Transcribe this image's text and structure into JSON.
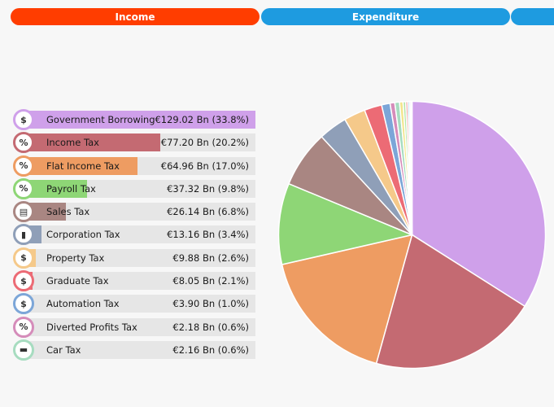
{
  "tabs": [
    {
      "label": "Income",
      "color": "#ff3d00"
    },
    {
      "label": "Expenditure",
      "color": "#1e9be0"
    },
    {
      "label": "",
      "color": "#1e9be0"
    }
  ],
  "income_items": [
    {
      "label": "Government Borrowing",
      "amount": "€129.02 Bn (33.8%)",
      "share": 33.8,
      "color": "#cfa0ea",
      "icon": "dollar-icon",
      "glyph": "$"
    },
    {
      "label": "Income Tax",
      "amount": "€77.20 Bn (20.2%)",
      "share": 20.2,
      "color": "#c46a72",
      "icon": "percent-icon",
      "glyph": "%"
    },
    {
      "label": "Flat Income Tax",
      "amount": "€64.96 Bn (17.0%)",
      "share": 17.0,
      "color": "#ee9c62",
      "icon": "flat-tax-icon",
      "glyph": "%"
    },
    {
      "label": "Payroll Tax",
      "amount": "€37.32 Bn (9.8%)",
      "share": 9.8,
      "color": "#8ed676",
      "icon": "payroll-icon",
      "glyph": "%"
    },
    {
      "label": "Sales Tax",
      "amount": "€26.14 Bn (6.8%)",
      "share": 6.8,
      "color": "#a98682",
      "icon": "sales-icon",
      "glyph": "▤"
    },
    {
      "label": "Corporation Tax",
      "amount": "€13.16 Bn (3.4%)",
      "share": 3.4,
      "color": "#8f9fb8",
      "icon": "corporation-icon",
      "glyph": "▮"
    },
    {
      "label": "Property Tax",
      "amount": "€9.88 Bn (2.6%)",
      "share": 2.6,
      "color": "#f5c98a",
      "icon": "property-icon",
      "glyph": "$"
    },
    {
      "label": "Graduate Tax",
      "amount": "€8.05 Bn (2.1%)",
      "share": 2.1,
      "color": "#ec6b75",
      "icon": "graduate-icon",
      "glyph": "$"
    },
    {
      "label": "Automation Tax",
      "amount": "€3.90 Bn (1.0%)",
      "share": 1.0,
      "color": "#7ca6d8",
      "icon": "automation-icon",
      "glyph": "$"
    },
    {
      "label": "Diverted Profits Tax",
      "amount": "€2.18 Bn (0.6%)",
      "share": 0.6,
      "color": "#d58cba",
      "icon": "diverted-profits-icon",
      "glyph": "%"
    },
    {
      "label": "Car Tax",
      "amount": "€2.16 Bn (0.6%)",
      "share": 0.6,
      "color": "#a7dcc0",
      "icon": "car-icon",
      "glyph": "▬"
    }
  ],
  "chart_data": {
    "type": "pie",
    "slices": [
      {
        "name": "Government Borrowing",
        "value": 129.02,
        "color": "#cfa0ea"
      },
      {
        "name": "Income Tax",
        "value": 77.2,
        "color": "#c46a72"
      },
      {
        "name": "Flat Income Tax",
        "value": 64.96,
        "color": "#ee9c62"
      },
      {
        "name": "Payroll Tax",
        "value": 37.32,
        "color": "#8ed676"
      },
      {
        "name": "Sales Tax",
        "value": 26.14,
        "color": "#a98682"
      },
      {
        "name": "Corporation Tax",
        "value": 13.16,
        "color": "#8f9fb8"
      },
      {
        "name": "Property Tax",
        "value": 9.88,
        "color": "#f5c98a"
      },
      {
        "name": "Graduate Tax",
        "value": 8.05,
        "color": "#ec6b75"
      },
      {
        "name": "Automation Tax",
        "value": 3.9,
        "color": "#7ca6d8"
      },
      {
        "name": "Diverted Profits Tax",
        "value": 2.18,
        "color": "#d58cba"
      },
      {
        "name": "Car Tax",
        "value": 2.16,
        "color": "#a7dcc0"
      },
      {
        "name": "",
        "value": 1.6,
        "color": "#f2e58c"
      },
      {
        "name": "",
        "value": 1.2,
        "color": "#b3e6a6"
      },
      {
        "name": "",
        "value": 1.0,
        "color": "#f0a0a0"
      },
      {
        "name": "",
        "value": 0.8,
        "color": "#9fc7e8"
      },
      {
        "name": "",
        "value": 0.6,
        "color": "#c9a2d8"
      },
      {
        "name": "",
        "value": 0.5,
        "color": "#6fc0b0"
      }
    ]
  }
}
